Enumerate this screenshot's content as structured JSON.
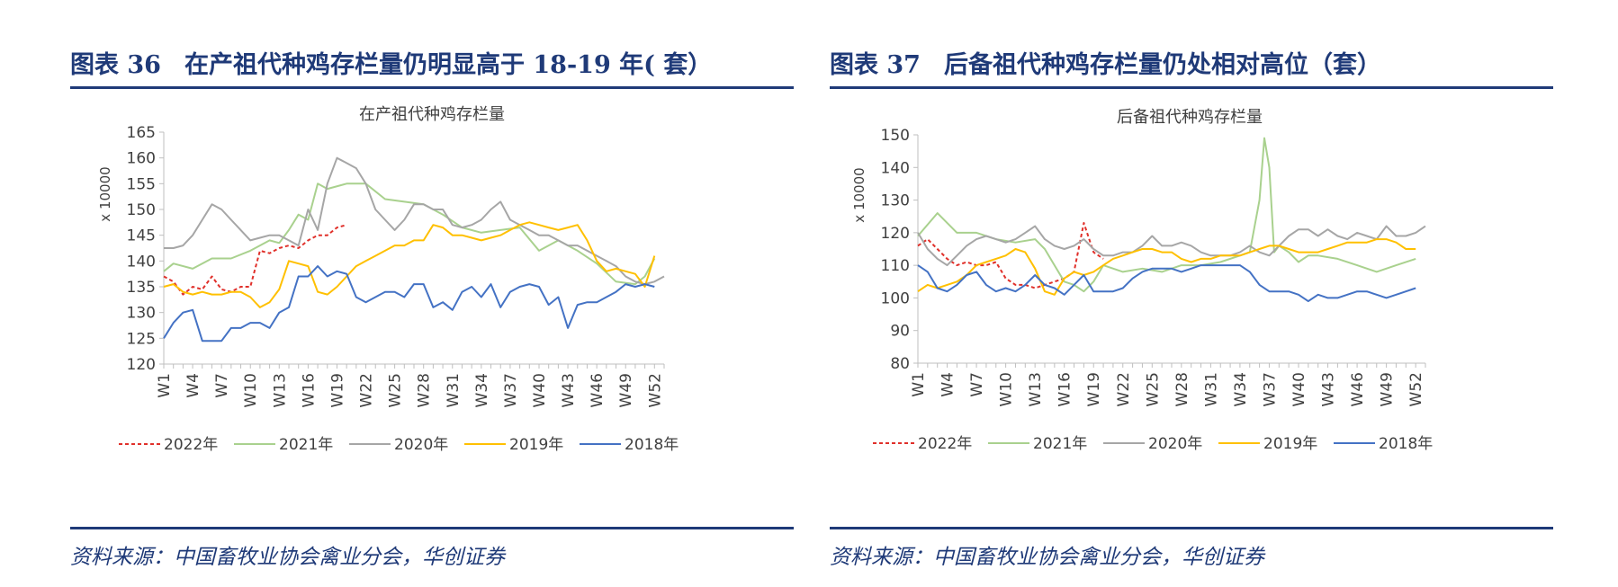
{
  "left_panel": {
    "figure_number": "图表 36",
    "figure_title": "在产祖代种鸡存栏量仍明显高于 18-19 年( 套）",
    "source": "资料来源：中国畜牧业协会禽业分会，华创证券"
  },
  "right_panel": {
    "figure_number": "图表 37",
    "figure_title": "后备祖代种鸡存栏量仍处相对高位（套）",
    "source": "资料来源：中国畜牧业协会禽业分会，华创证券"
  },
  "colors": {
    "2022年": "#e0302a",
    "2021年": "#a9d18e",
    "2020年": "#a6a6a6",
    "2019年": "#ffc000",
    "2018年": "#4472c4",
    "accent": "#1f3a78"
  },
  "chart_data": [
    {
      "type": "line",
      "title": "在产祖代种鸡存栏量",
      "ylabel": "x 10000",
      "ylim": [
        120,
        165
      ],
      "yticks": [
        120,
        125,
        130,
        135,
        140,
        145,
        150,
        155,
        160,
        165
      ],
      "xlim": [
        1,
        53
      ],
      "xticks": [
        "W1",
        "W4",
        "W7",
        "W10",
        "W13",
        "W16",
        "W19",
        "W22",
        "W25",
        "W28",
        "W31",
        "W34",
        "W37",
        "W40",
        "W43",
        "W46",
        "W49",
        "W52"
      ],
      "xtick_values": [
        1,
        4,
        7,
        10,
        13,
        16,
        19,
        22,
        25,
        28,
        31,
        34,
        37,
        40,
        43,
        46,
        49,
        52
      ],
      "legend": [
        "2022年",
        "2021年",
        "2020年",
        "2019年",
        "2018年"
      ],
      "series": [
        {
          "name": "2022年",
          "style": "dashed",
          "x": [
            1,
            2,
            3,
            4,
            5,
            6,
            7,
            8,
            9,
            10,
            11,
            12,
            13,
            14,
            15,
            16,
            17,
            18,
            19,
            20
          ],
          "values": [
            137,
            136,
            133.5,
            135,
            134.5,
            137,
            134.5,
            134,
            135,
            135,
            142,
            141.5,
            142.5,
            143,
            142.5,
            144,
            145,
            145,
            146.5,
            147
          ]
        },
        {
          "name": "2021年",
          "style": "solid",
          "x": [
            1,
            2,
            4,
            6,
            8,
            10,
            12,
            13,
            14,
            15,
            16,
            17,
            18,
            20,
            22,
            24,
            26,
            28,
            30,
            32,
            34,
            36,
            38,
            40,
            42,
            44,
            46,
            48,
            50,
            51,
            52
          ],
          "values": [
            138,
            139.5,
            138.5,
            140.5,
            140.5,
            142,
            144,
            143.5,
            146,
            149,
            148,
            155,
            154,
            155,
            155,
            152,
            151.5,
            151,
            149,
            146.5,
            145.5,
            146,
            146.5,
            142,
            144,
            142,
            139.5,
            136,
            135.5,
            137,
            140.5
          ]
        },
        {
          "name": "2020年",
          "style": "solid",
          "x": [
            1,
            2,
            3,
            4,
            5,
            6,
            7,
            8,
            9,
            10,
            11,
            12,
            13,
            14,
            15,
            16,
            17,
            18,
            19,
            20,
            21,
            22,
            23,
            24,
            25,
            26,
            27,
            28,
            29,
            30,
            31,
            32,
            33,
            34,
            35,
            36,
            37,
            38,
            39,
            40,
            41,
            42,
            43,
            44,
            45,
            46,
            47,
            48,
            49,
            50,
            51,
            52,
            53
          ],
          "values": [
            142.5,
            142.5,
            143,
            145,
            148,
            151,
            150,
            148,
            146,
            144,
            144.5,
            145,
            145,
            144,
            143,
            150,
            146,
            155,
            160,
            159,
            158,
            155,
            150,
            148,
            146,
            148,
            151,
            151,
            150,
            150,
            147,
            146.5,
            147,
            148,
            150,
            151.5,
            148,
            147,
            146,
            145,
            145,
            144,
            143,
            143,
            142,
            141,
            140,
            139,
            137,
            136,
            135.5,
            136,
            137
          ]
        },
        {
          "name": "2019年",
          "style": "solid",
          "x": [
            1,
            2,
            3,
            4,
            5,
            6,
            7,
            8,
            9,
            10,
            11,
            12,
            13,
            14,
            15,
            16,
            17,
            18,
            19,
            20,
            21,
            22,
            23,
            24,
            25,
            26,
            27,
            28,
            29,
            30,
            31,
            32,
            33,
            34,
            35,
            36,
            37,
            38,
            39,
            40,
            41,
            42,
            43,
            44,
            45,
            46,
            47,
            48,
            49,
            50,
            51,
            52
          ],
          "values": [
            135,
            135.5,
            134,
            133.5,
            134,
            133.5,
            133.5,
            134,
            134,
            133,
            131,
            132,
            134.5,
            140,
            139.5,
            139,
            134,
            133.5,
            135,
            137,
            139,
            140,
            141,
            142,
            143,
            143,
            144,
            144,
            147,
            146.5,
            145,
            145,
            144.5,
            144,
            144.5,
            145,
            146,
            147,
            147.5,
            147,
            146.5,
            146,
            146.5,
            147,
            144,
            140,
            138,
            138.5,
            138,
            137.5,
            135,
            141
          ]
        },
        {
          "name": "2018年",
          "style": "solid",
          "x": [
            1,
            2,
            3,
            4,
            5,
            6,
            7,
            8,
            9,
            10,
            11,
            12,
            13,
            14,
            15,
            16,
            17,
            18,
            19,
            20,
            21,
            22,
            23,
            24,
            25,
            26,
            27,
            28,
            29,
            30,
            31,
            32,
            33,
            34,
            35,
            36,
            37,
            38,
            39,
            40,
            41,
            42,
            43,
            44,
            45,
            46,
            47,
            48,
            49,
            50,
            51,
            52
          ],
          "values": [
            125,
            128,
            130,
            130.5,
            124.5,
            124.5,
            124.5,
            127,
            127,
            128,
            128,
            127,
            130,
            131,
            137,
            137,
            139,
            137,
            138,
            137.5,
            133,
            132,
            133,
            134,
            134,
            133,
            135.5,
            135.5,
            131,
            132,
            130.5,
            134,
            135,
            133,
            135.5,
            131,
            134,
            135,
            135.5,
            135,
            131.5,
            133,
            127,
            131.5,
            132,
            132,
            133,
            134,
            135.5,
            135,
            135.5,
            135
          ]
        }
      ]
    },
    {
      "type": "line",
      "title": "后备祖代种鸡存栏量",
      "ylabel": "x 10000",
      "ylim": [
        80,
        150
      ],
      "yticks": [
        80,
        90,
        100,
        110,
        120,
        130,
        140,
        150
      ],
      "xlim": [
        1,
        53
      ],
      "xticks": [
        "W1",
        "W4",
        "W7",
        "W10",
        "W13",
        "W16",
        "W19",
        "W22",
        "W25",
        "W28",
        "W31",
        "W34",
        "W37",
        "W40",
        "W43",
        "W46",
        "W49",
        "W52"
      ],
      "xtick_values": [
        1,
        4,
        7,
        10,
        13,
        16,
        19,
        22,
        25,
        28,
        31,
        34,
        37,
        40,
        43,
        46,
        49,
        52
      ],
      "legend": [
        "2022年",
        "2021年",
        "2020年",
        "2019年",
        "2018年"
      ],
      "series": [
        {
          "name": "2022年",
          "style": "dashed",
          "x": [
            1,
            2,
            3,
            4,
            5,
            6,
            7,
            8,
            9,
            10,
            11,
            12,
            13,
            14,
            15,
            16,
            17,
            18,
            19,
            20
          ],
          "values": [
            116,
            118,
            115,
            112,
            110,
            111,
            110,
            110,
            111,
            106,
            104,
            104,
            103,
            104,
            105,
            106,
            108,
            123,
            114,
            112
          ]
        },
        {
          "name": "2021年",
          "style": "solid",
          "x": [
            1,
            3,
            5,
            7,
            9,
            11,
            13,
            14,
            15,
            16,
            17,
            18,
            19,
            20,
            22,
            24,
            26,
            28,
            30,
            32,
            34,
            35,
            36,
            36.5,
            37,
            37.5,
            38,
            39,
            40,
            41,
            42,
            44,
            46,
            48,
            50,
            52
          ],
          "values": [
            119,
            126,
            120,
            120,
            118,
            117,
            118,
            115,
            110,
            105,
            104,
            102,
            105,
            110,
            108,
            109,
            108,
            110,
            110,
            111,
            113,
            114,
            130,
            149,
            140,
            114,
            116,
            114,
            111,
            113,
            113,
            112,
            110,
            108,
            110,
            112
          ]
        },
        {
          "name": "2020年",
          "style": "solid",
          "x": [
            1,
            2,
            3,
            4,
            5,
            6,
            7,
            8,
            9,
            10,
            11,
            12,
            13,
            14,
            15,
            16,
            17,
            18,
            19,
            20,
            21,
            22,
            23,
            24,
            25,
            26,
            27,
            28,
            29,
            30,
            31,
            32,
            33,
            34,
            35,
            36,
            37,
            38,
            39,
            40,
            41,
            42,
            43,
            44,
            45,
            46,
            47,
            48,
            49,
            50,
            51,
            52,
            53
          ],
          "values": [
            120,
            115,
            112,
            110,
            113,
            116,
            118,
            119,
            118,
            117,
            118,
            120,
            122,
            118,
            116,
            115,
            116,
            118,
            115,
            113,
            113,
            114,
            114,
            116,
            119,
            116,
            116,
            117,
            116,
            114,
            113,
            113,
            113,
            114,
            116,
            114,
            113,
            116,
            119,
            121,
            121,
            119,
            121,
            119,
            118,
            120,
            119,
            118,
            122,
            119,
            119,
            120,
            122
          ]
        },
        {
          "name": "2019年",
          "style": "solid",
          "x": [
            1,
            2,
            3,
            4,
            5,
            6,
            7,
            8,
            9,
            10,
            11,
            12,
            13,
            14,
            15,
            16,
            17,
            18,
            19,
            20,
            21,
            22,
            23,
            24,
            25,
            26,
            27,
            28,
            29,
            30,
            31,
            32,
            33,
            34,
            35,
            36,
            37,
            38,
            39,
            40,
            41,
            42,
            43,
            44,
            45,
            46,
            47,
            48,
            49,
            50,
            51,
            52
          ],
          "values": [
            102,
            104,
            103,
            104,
            105,
            107,
            110,
            111,
            112,
            113,
            115,
            114,
            109,
            102,
            101,
            106,
            108,
            107,
            108,
            110,
            112,
            113,
            114,
            115,
            115,
            114,
            114,
            112,
            111,
            112,
            112,
            113,
            113,
            113,
            114,
            115,
            116,
            116,
            115,
            114,
            114,
            114,
            115,
            116,
            117,
            117,
            117,
            118,
            118,
            117,
            115,
            115
          ]
        },
        {
          "name": "2018年",
          "style": "solid",
          "x": [
            1,
            2,
            3,
            4,
            5,
            6,
            7,
            8,
            9,
            10,
            11,
            12,
            13,
            14,
            15,
            16,
            17,
            18,
            19,
            20,
            21,
            22,
            23,
            24,
            25,
            26,
            27,
            28,
            29,
            30,
            31,
            32,
            33,
            34,
            35,
            36,
            37,
            38,
            39,
            40,
            41,
            42,
            43,
            44,
            45,
            46,
            47,
            48,
            49,
            50,
            51,
            52
          ],
          "values": [
            110,
            108,
            103,
            102,
            104,
            107,
            108,
            104,
            102,
            103,
            102,
            104,
            107,
            104,
            103,
            101,
            104,
            107,
            102,
            102,
            102,
            103,
            106,
            108,
            109,
            109,
            109,
            108,
            109,
            110,
            110,
            110,
            110,
            110,
            108,
            104,
            102,
            102,
            102,
            101,
            99,
            101,
            100,
            100,
            101,
            102,
            102,
            101,
            100,
            101,
            102,
            103
          ]
        }
      ]
    }
  ]
}
